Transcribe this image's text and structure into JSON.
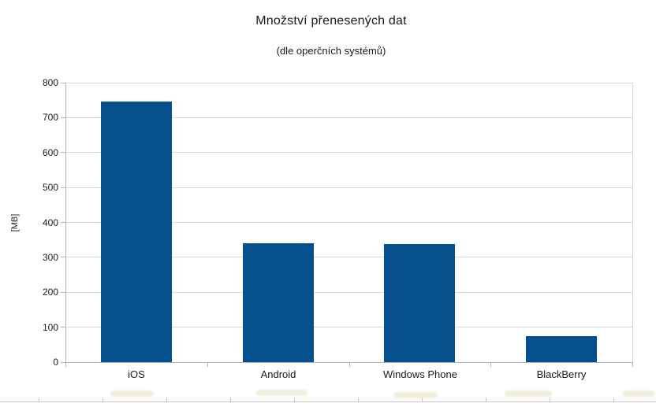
{
  "chart_data": {
    "type": "bar",
    "title": "Množství přenesených dat",
    "subtitle": "(dle operčních systémů)",
    "ylabel": "[MB]",
    "xlabel": "",
    "categories": [
      "iOS",
      "Android",
      "Windows Phone",
      "BlackBerry"
    ],
    "values": [
      745,
      340,
      338,
      75
    ],
    "ylim": [
      0,
      800
    ],
    "ytick_step": 100,
    "ytick_labels": [
      "0",
      "100",
      "200",
      "300",
      "400",
      "500",
      "600",
      "700",
      "800"
    ],
    "grid": "horizontal",
    "legend_position": "none",
    "bar_color": "#07508e",
    "gridline_color": "#d9d9d9",
    "axis_color": "#b3b3b3",
    "ruler_color": "#c6c6c6",
    "text_color": "#1a1a1a"
  }
}
